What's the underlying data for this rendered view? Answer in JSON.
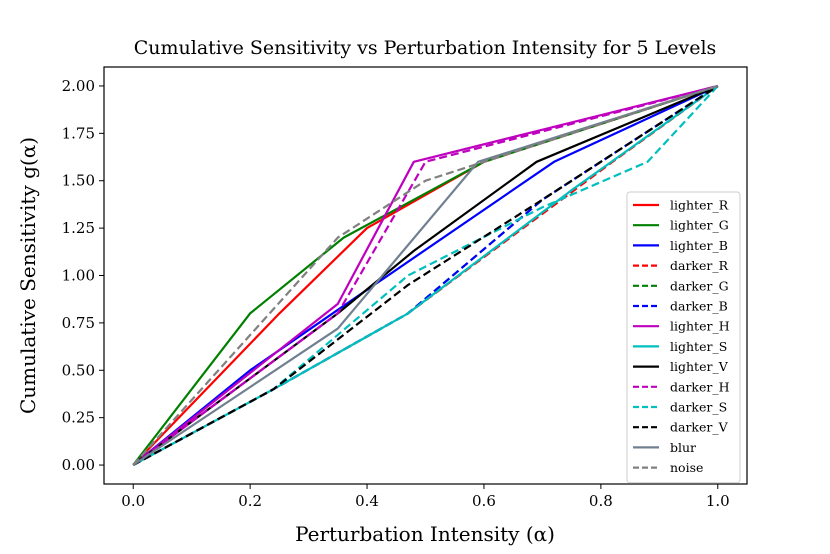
{
  "chart_data": {
    "type": "line",
    "title": "Cumulative Sensitivity vs Perturbation Intensity for 5 Levels",
    "xlabel": "Perturbation Intensity (α)",
    "ylabel": "Cumulative Sensitivity g(α)",
    "xlim": [
      -0.05,
      1.05
    ],
    "ylim": [
      -0.1,
      2.1
    ],
    "xticks": [
      0.0,
      0.2,
      0.4,
      0.6,
      0.8,
      1.0
    ],
    "xtick_labels": [
      "0.0",
      "0.2",
      "0.4",
      "0.6",
      "0.8",
      "1.0"
    ],
    "yticks": [
      0.0,
      0.25,
      0.5,
      0.75,
      1.0,
      1.25,
      1.5,
      1.75,
      2.0
    ],
    "ytick_labels": [
      "0.00",
      "0.25",
      "0.50",
      "0.75",
      "1.00",
      "1.25",
      "1.50",
      "1.75",
      "2.00"
    ],
    "grid": false,
    "legend_position": "lower-right",
    "series": [
      {
        "name": "lighter_R",
        "color": "#ff0000",
        "dash": "solid",
        "x": [
          0,
          0.25,
          0.4,
          0.6,
          1.0
        ],
        "y": [
          0,
          0.8,
          1.25,
          1.6,
          2.0
        ]
      },
      {
        "name": "lighter_G",
        "color": "#008000",
        "dash": "solid",
        "x": [
          0,
          0.2,
          0.36,
          0.6,
          1.0
        ],
        "y": [
          0,
          0.8,
          1.2,
          1.6,
          2.0
        ]
      },
      {
        "name": "lighter_B",
        "color": "#0000ff",
        "dash": "solid",
        "x": [
          0,
          0.2,
          0.36,
          0.72,
          1.0
        ],
        "y": [
          0,
          0.5,
          0.84,
          1.6,
          2.0
        ]
      },
      {
        "name": "darker_R",
        "color": "#ff0000",
        "dash": "dashed",
        "x": [
          0,
          0.24,
          0.47,
          0.82,
          1.0
        ],
        "y": [
          0,
          0.4,
          0.8,
          1.6,
          2.0
        ]
      },
      {
        "name": "darker_G",
        "color": "#008000",
        "dash": "dashed",
        "x": [
          0,
          0.24,
          0.47,
          0.7,
          1.0
        ],
        "y": [
          0,
          0.4,
          0.8,
          1.4,
          2.0
        ]
      },
      {
        "name": "darker_B",
        "color": "#0000ff",
        "dash": "dashed",
        "x": [
          0,
          0.24,
          0.47,
          0.7,
          1.0
        ],
        "y": [
          0,
          0.4,
          0.8,
          1.4,
          2.0
        ]
      },
      {
        "name": "lighter_H",
        "color": "#bf00bf",
        "dash": "solid",
        "x": [
          0,
          0.35,
          0.48,
          1.0
        ],
        "y": [
          0,
          0.85,
          1.6,
          2.0
        ]
      },
      {
        "name": "lighter_S",
        "color": "#00bfbf",
        "dash": "solid",
        "x": [
          0,
          0.24,
          0.47,
          0.75,
          1.0
        ],
        "y": [
          0,
          0.4,
          0.8,
          1.45,
          2.0
        ]
      },
      {
        "name": "lighter_V",
        "color": "#000000",
        "dash": "solid",
        "x": [
          0,
          0.35,
          0.48,
          0.69,
          1.0
        ],
        "y": [
          0,
          0.8,
          1.13,
          1.6,
          2.0
        ]
      },
      {
        "name": "darker_H",
        "color": "#bf00bf",
        "dash": "dashed",
        "x": [
          0,
          0.35,
          0.5,
          1.0
        ],
        "y": [
          0,
          0.8,
          1.6,
          2.0
        ]
      },
      {
        "name": "darker_S",
        "color": "#00bfbf",
        "dash": "dashed",
        "x": [
          0,
          0.24,
          0.47,
          0.7,
          0.88,
          1.0
        ],
        "y": [
          0,
          0.4,
          1.0,
          1.36,
          1.6,
          2.0
        ]
      },
      {
        "name": "darker_V",
        "color": "#000000",
        "dash": "dashed",
        "x": [
          0,
          0.24,
          0.47,
          0.7,
          1.0
        ],
        "y": [
          0,
          0.4,
          0.95,
          1.4,
          2.0
        ]
      },
      {
        "name": "blur",
        "color": "#708090",
        "dash": "solid",
        "x": [
          0,
          0.35,
          0.59,
          1.0
        ],
        "y": [
          0,
          0.72,
          1.6,
          2.0
        ]
      },
      {
        "name": "noise",
        "color": "#808080",
        "dash": "dashed",
        "x": [
          0,
          0.35,
          0.5,
          0.6,
          1.0
        ],
        "y": [
          0,
          1.2,
          1.5,
          1.6,
          2.0
        ]
      }
    ]
  }
}
